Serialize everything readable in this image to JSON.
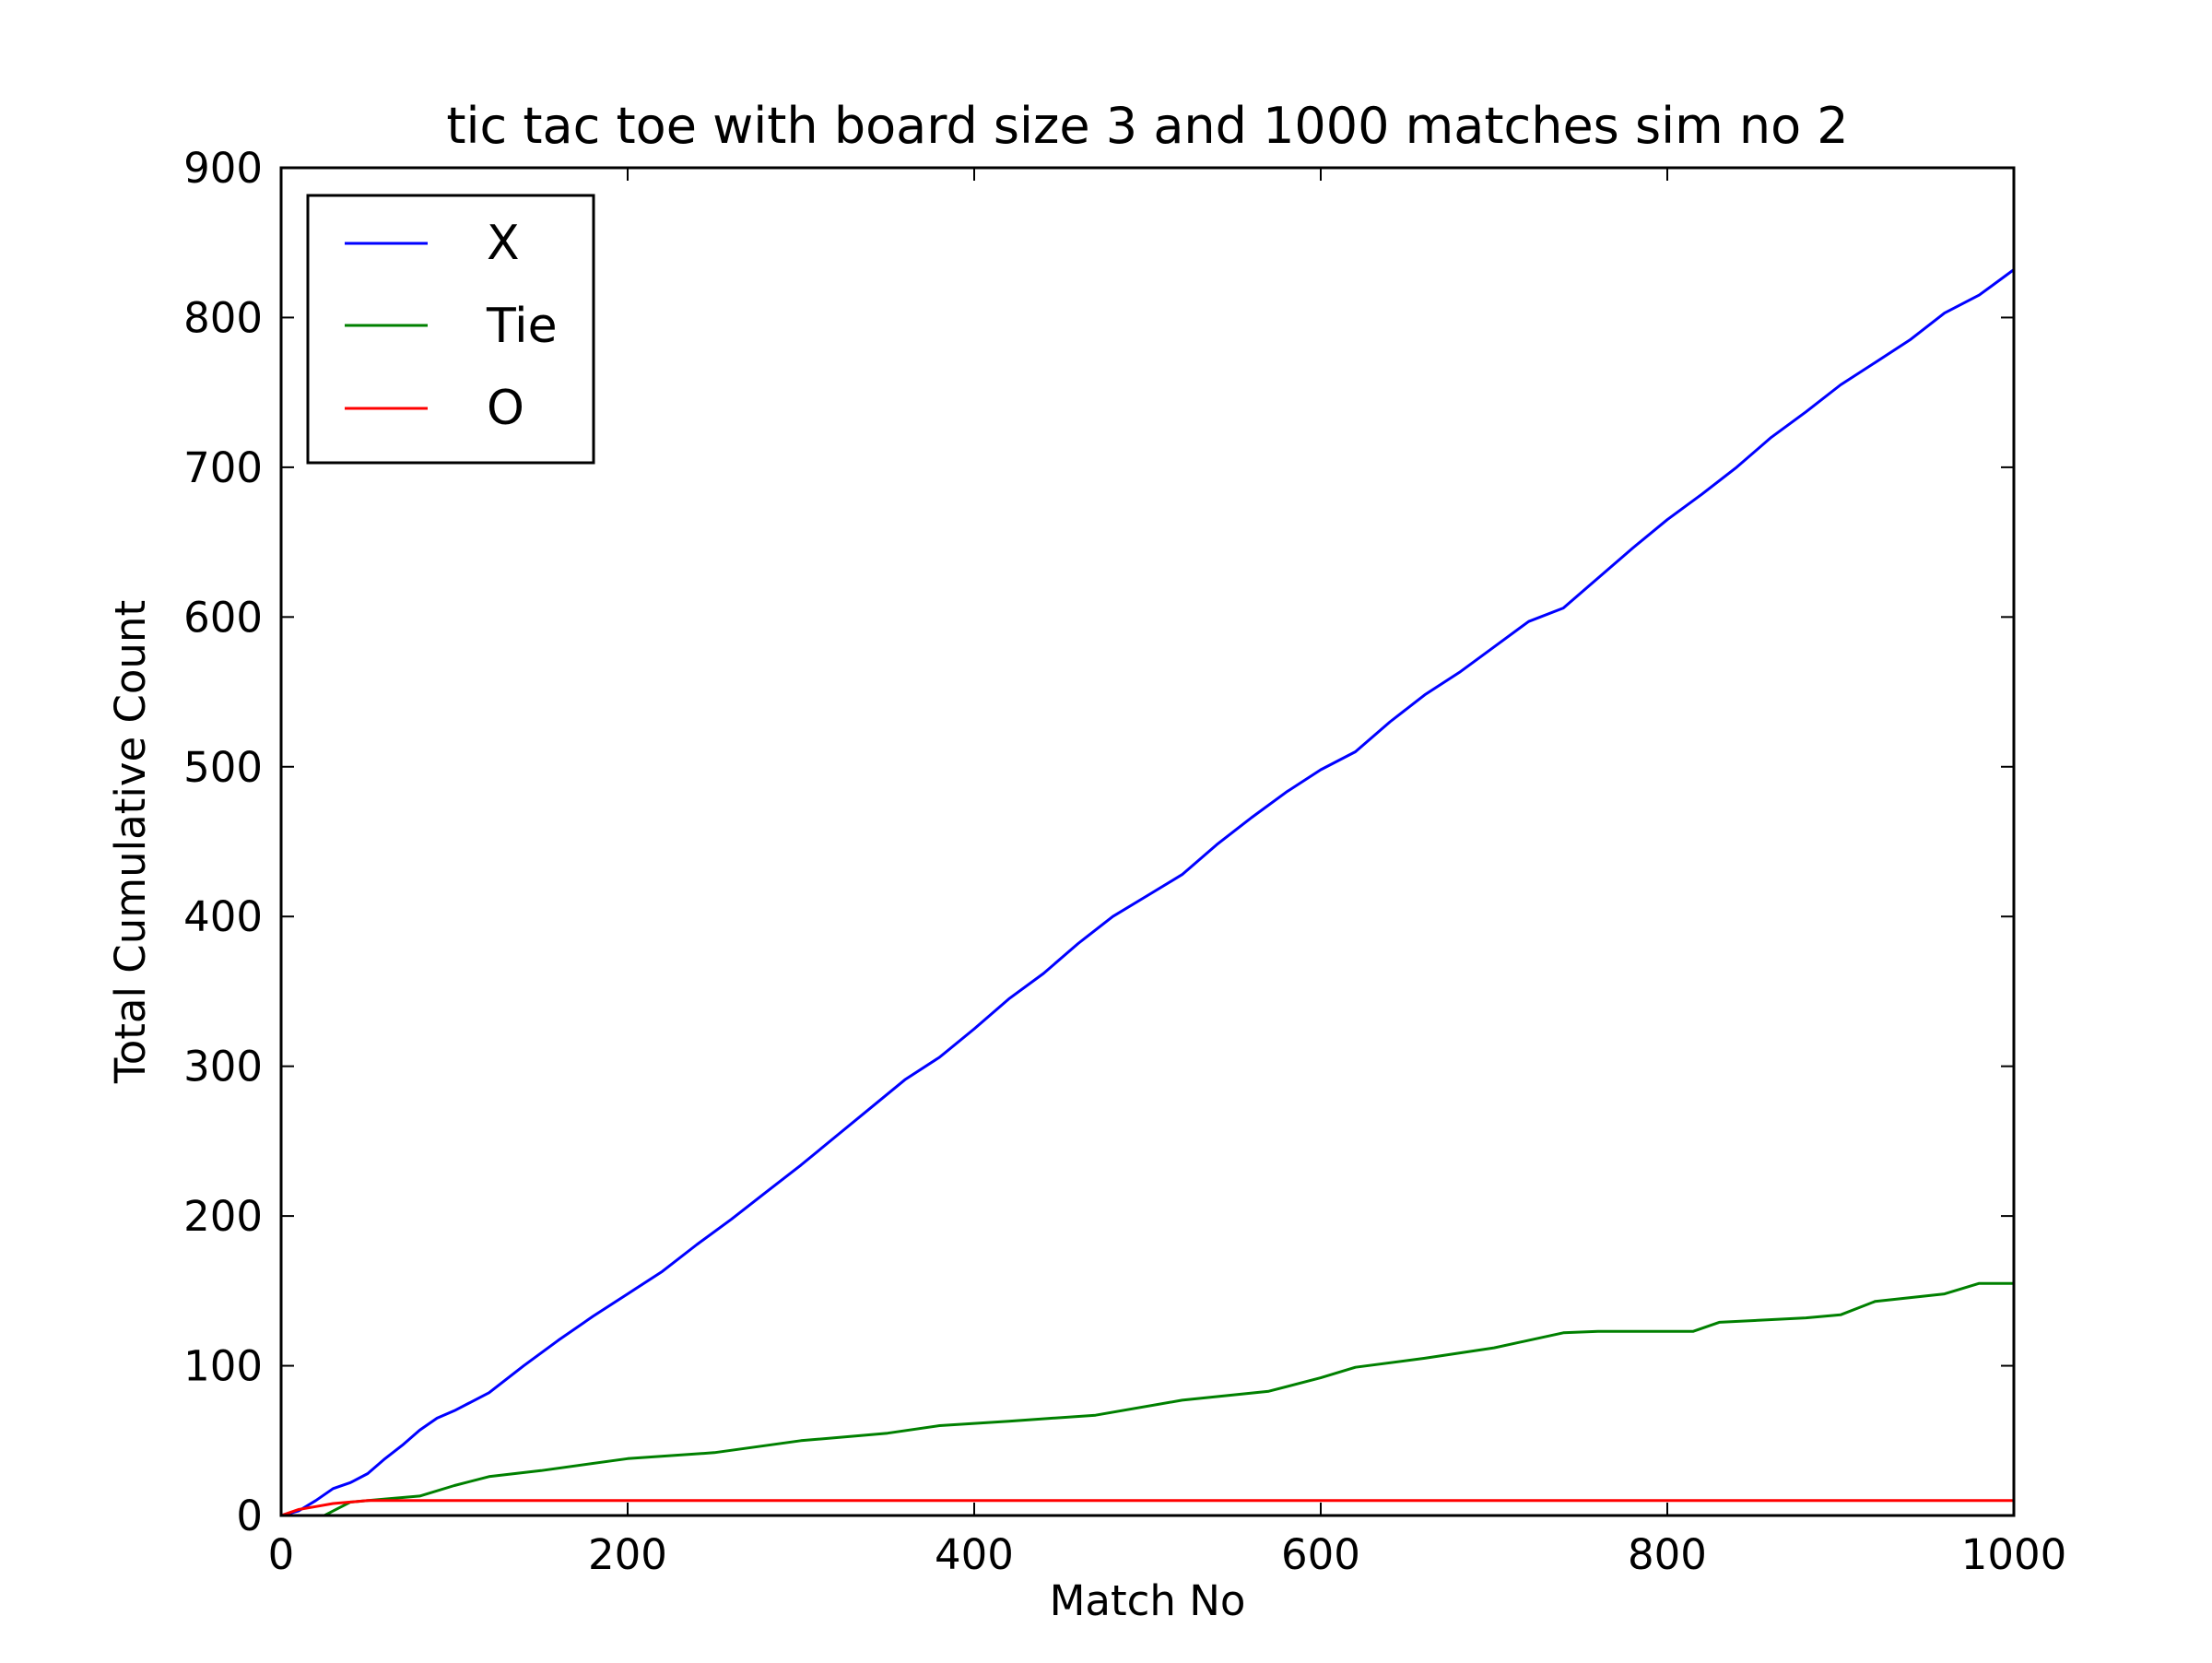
{
  "chart_data": {
    "type": "line",
    "title": "tic tac toe with board size 3 and 1000 matches sim no 2",
    "xlabel": "Match No",
    "ylabel": "Total Cumulative Count",
    "xlim": [
      0,
      1000
    ],
    "ylim": [
      0,
      900
    ],
    "xticks": [
      0,
      200,
      400,
      600,
      800,
      1000
    ],
    "yticks": [
      0,
      100,
      200,
      300,
      400,
      500,
      600,
      700,
      800,
      900
    ],
    "grid": false,
    "legend_position": "top-left",
    "series": [
      {
        "name": "X",
        "color": "#0000ff",
        "x": [
          0,
          10,
          20,
          30,
          40,
          50,
          60,
          70,
          80,
          90,
          100,
          120,
          140,
          160,
          180,
          200,
          220,
          240,
          260,
          280,
          300,
          320,
          340,
          360,
          380,
          400,
          420,
          440,
          460,
          480,
          500,
          520,
          540,
          560,
          580,
          600,
          620,
          640,
          660,
          680,
          700,
          720,
          740,
          760,
          780,
          800,
          820,
          840,
          860,
          880,
          900,
          920,
          940,
          960,
          980,
          1000
        ],
        "y": [
          0,
          3,
          10,
          18,
          22,
          28,
          38,
          47,
          57,
          65,
          70,
          82,
          100,
          117,
          133,
          148,
          163,
          181,
          198,
          216,
          234,
          253,
          272,
          291,
          306,
          325,
          345,
          362,
          382,
          400,
          414,
          428,
          448,
          466,
          483,
          498,
          510,
          530,
          548,
          563,
          580,
          597,
          606,
          626,
          646,
          665,
          682,
          700,
          720,
          737,
          755,
          770,
          785,
          803,
          815,
          832
        ]
      },
      {
        "name": "Tie",
        "color": "#008000",
        "x": [
          0,
          25,
          30,
          40,
          60,
          80,
          100,
          120,
          150,
          200,
          250,
          300,
          350,
          380,
          420,
          470,
          520,
          570,
          600,
          620,
          660,
          700,
          740,
          760,
          815,
          830,
          880,
          900,
          920,
          960,
          980,
          1000
        ],
        "y": [
          0,
          0,
          3,
          9,
          11,
          13,
          20,
          26,
          30,
          38,
          42,
          50,
          55,
          60,
          63,
          67,
          77,
          83,
          92,
          99,
          105,
          112,
          122,
          123,
          123,
          129,
          132,
          134,
          143,
          148,
          155,
          155
        ]
      },
      {
        "name": "O",
        "color": "#ff0000",
        "x": [
          0,
          5,
          10,
          20,
          30,
          40,
          50,
          1000
        ],
        "y": [
          0,
          2,
          4,
          6,
          8,
          9,
          10,
          10
        ]
      }
    ]
  }
}
